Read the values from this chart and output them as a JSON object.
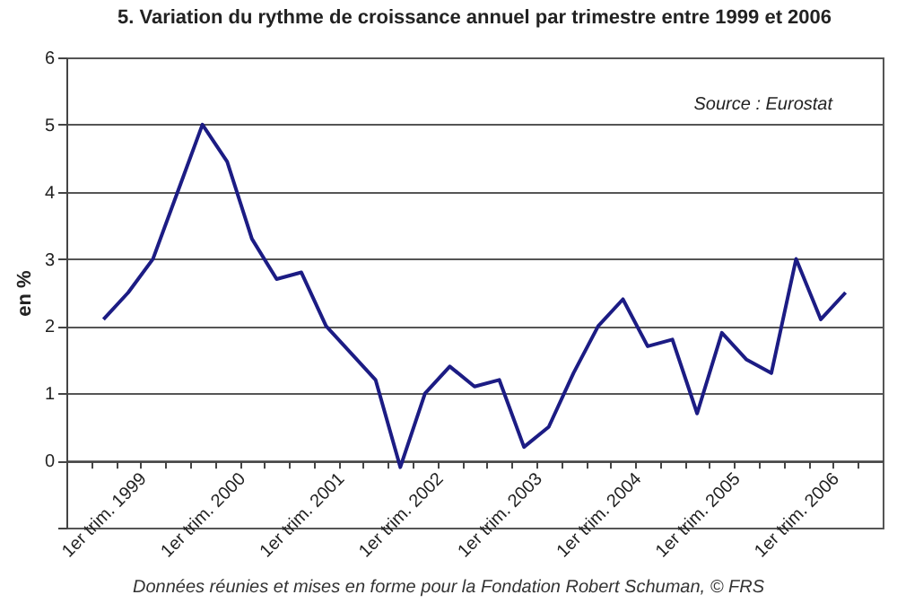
{
  "chart_data": {
    "type": "line",
    "title": "5.  Variation du rythme de croissance annuel par trimestre entre 1999 et 2006",
    "ylabel": "en %",
    "annotations": [
      "Source : Eurostat",
      "Données réunies et mises en forme pour la Fondation Robert Schuman, © FRS"
    ],
    "categories": [
      "1er trim. 1999",
      null,
      null,
      null,
      "1er trim. 2000",
      null,
      null,
      null,
      "1er trim. 2001",
      null,
      null,
      null,
      "1er trim. 2002",
      null,
      null,
      null,
      "1er trim. 2003",
      null,
      null,
      null,
      "1er trim. 2004",
      null,
      null,
      null,
      "1er trim. 2005",
      null,
      null,
      null,
      "1er trim. 2006",
      null,
      null
    ],
    "series": [
      {
        "color": "#1c1c84",
        "values": [
          2.1,
          2.5,
          3.0,
          4.0,
          5.0,
          4.45,
          3.3,
          2.7,
          2.8,
          2.0,
          1.6,
          1.2,
          -0.1,
          1.0,
          1.4,
          1.1,
          1.2,
          0.2,
          0.5,
          1.3,
          2.0,
          2.4,
          1.7,
          1.8,
          0.7,
          1.9,
          1.5,
          1.3,
          3.0,
          2.1,
          2.5
        ]
      }
    ],
    "ylim": [
      -1,
      6
    ],
    "yticks": [
      {
        "value": -1,
        "label": null
      },
      0,
      1,
      2,
      3,
      4,
      5,
      6
    ],
    "grid": "y",
    "marker": "none",
    "line_style": "solid"
  }
}
